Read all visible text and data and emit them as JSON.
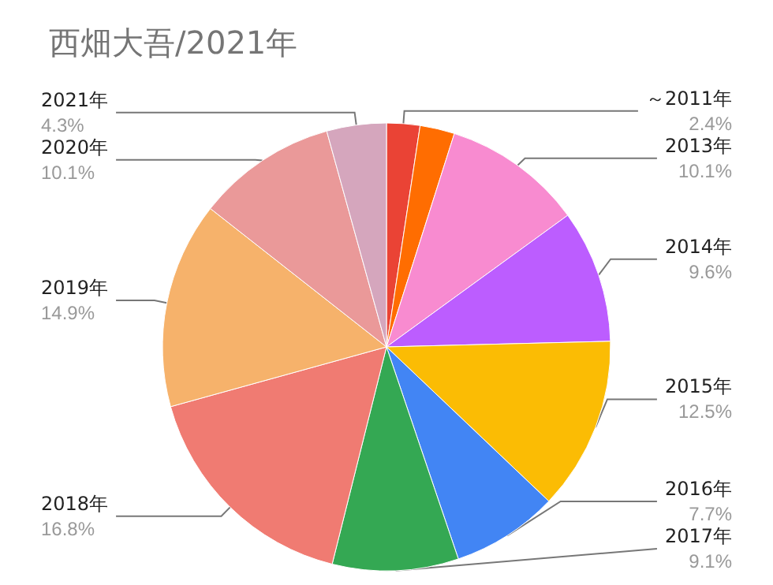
{
  "chart_data": {
    "type": "pie",
    "title": "西畑大吾/2021年",
    "categories": [
      "～2011年",
      null,
      "2013年",
      "2014年",
      "2015年",
      "2016年",
      "2017年",
      "2018年",
      "2019年",
      "2020年",
      "2021年"
    ],
    "values": [
      2.4,
      2.5,
      10.1,
      9.6,
      12.5,
      7.7,
      9.1,
      16.8,
      14.9,
      10.1,
      4.3
    ],
    "colors": [
      "#ea4335",
      "#ff6d01",
      "#f88bd0",
      "#bc5dff",
      "#fbbc04",
      "#4285f4",
      "#34a853",
      "#f07b72",
      "#f6b26b",
      "#ea9999",
      "#d5a6bd"
    ],
    "value_labels": [
      "2.4%",
      null,
      "10.1%",
      "9.6%",
      "12.5%",
      "7.7%",
      "9.1%",
      "16.8%",
      "14.9%",
      "10.1%",
      "4.3%"
    ],
    "legend": false
  }
}
